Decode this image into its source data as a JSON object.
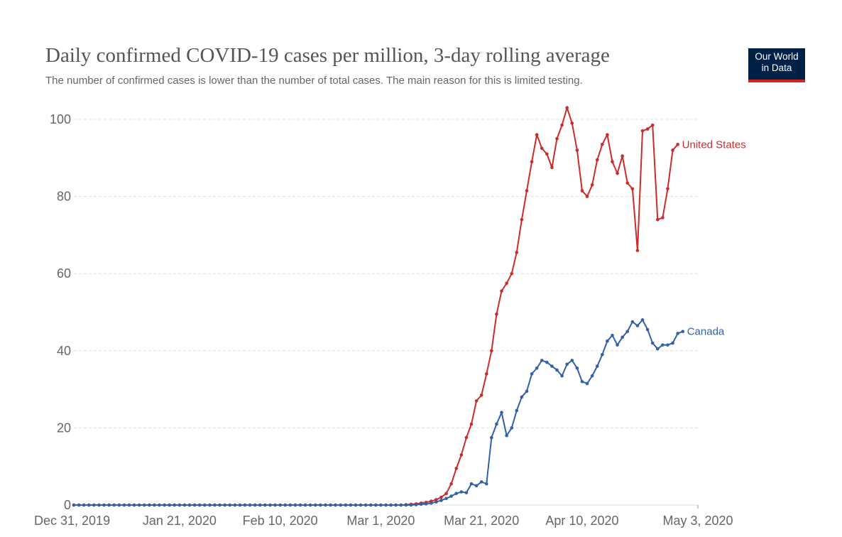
{
  "chart_data": {
    "type": "line",
    "title": "Daily confirmed COVID-19 cases per million, 3-day rolling average",
    "subtitle": "The number of confirmed cases is lower than the number of total cases. The main reason for this is limited testing.",
    "xlabel": "",
    "ylabel": "",
    "x_range_days": [
      0,
      124
    ],
    "x_ticks": [
      {
        "day": 0,
        "label": "Dec 31, 2019"
      },
      {
        "day": 21,
        "label": "Jan 21, 2020"
      },
      {
        "day": 41,
        "label": "Feb 10, 2020"
      },
      {
        "day": 61,
        "label": "Mar 1, 2020"
      },
      {
        "day": 81,
        "label": "Mar 21, 2020"
      },
      {
        "day": 101,
        "label": "Apr 10, 2020"
      },
      {
        "day": 124,
        "label": "May 3, 2020"
      }
    ],
    "ylim": [
      0,
      100
    ],
    "y_ticks": [
      0,
      20,
      40,
      60,
      80,
      100
    ],
    "grid": true,
    "series": [
      {
        "name": "United States",
        "color": "#cc2b2b",
        "start_day": 0,
        "values": [
          0,
          0,
          0,
          0,
          0,
          0,
          0,
          0,
          0,
          0,
          0,
          0,
          0,
          0,
          0,
          0,
          0,
          0,
          0,
          0,
          0,
          0,
          0,
          0,
          0,
          0,
          0,
          0,
          0,
          0,
          0,
          0,
          0,
          0,
          0,
          0,
          0,
          0,
          0,
          0,
          0,
          0,
          0,
          0,
          0,
          0,
          0,
          0,
          0,
          0,
          0,
          0,
          0,
          0,
          0,
          0,
          0,
          0,
          0,
          0,
          0,
          0,
          0,
          0,
          0,
          0,
          0.1,
          0.2,
          0.3,
          0.5,
          0.7,
          1.0,
          1.4,
          2.0,
          3.0,
          5.5,
          9.5,
          13,
          17.5,
          21,
          27,
          28.5,
          34,
          40,
          49.5,
          55.5,
          57.5,
          60,
          65.5,
          74,
          81.5,
          89,
          96,
          92.5,
          91,
          87.5,
          95,
          98.5,
          103,
          99,
          92,
          81.5,
          80,
          83,
          89.5,
          93.5,
          96,
          89,
          86,
          90.5,
          83.5,
          82,
          66,
          97,
          97.5,
          98.5,
          74,
          74.5,
          82,
          92,
          93.5
        ]
      },
      {
        "name": "Canada",
        "color": "#3360a9",
        "start_day": 0,
        "values": [
          0,
          0,
          0,
          0,
          0,
          0,
          0,
          0,
          0,
          0,
          0,
          0,
          0,
          0,
          0,
          0,
          0,
          0,
          0,
          0,
          0,
          0,
          0,
          0,
          0,
          0,
          0,
          0,
          0,
          0,
          0,
          0,
          0,
          0,
          0,
          0,
          0,
          0,
          0,
          0,
          0,
          0,
          0,
          0,
          0,
          0,
          0,
          0,
          0,
          0,
          0,
          0,
          0,
          0,
          0,
          0,
          0,
          0,
          0,
          0,
          0,
          0,
          0,
          0,
          0,
          0,
          0,
          0,
          0.1,
          0.2,
          0.3,
          0.5,
          0.8,
          1.2,
          1.7,
          2.3,
          3.0,
          3.4,
          3.2,
          5.5,
          5,
          6,
          5.5,
          17.5,
          21,
          24,
          18,
          20,
          24.5,
          28,
          29.5,
          34,
          35.5,
          37.5,
          37,
          36,
          35,
          33.5,
          36.5,
          37.5,
          35.5,
          32,
          31.5,
          33.5,
          36,
          39,
          42.5,
          44,
          41.5,
          43.5,
          45,
          47.5,
          46.5,
          48,
          45.5,
          42,
          40.5,
          41.5,
          41.5,
          42,
          44.5,
          45
        ]
      }
    ]
  },
  "logo": {
    "line1": "Our World",
    "line2": "in Data"
  }
}
